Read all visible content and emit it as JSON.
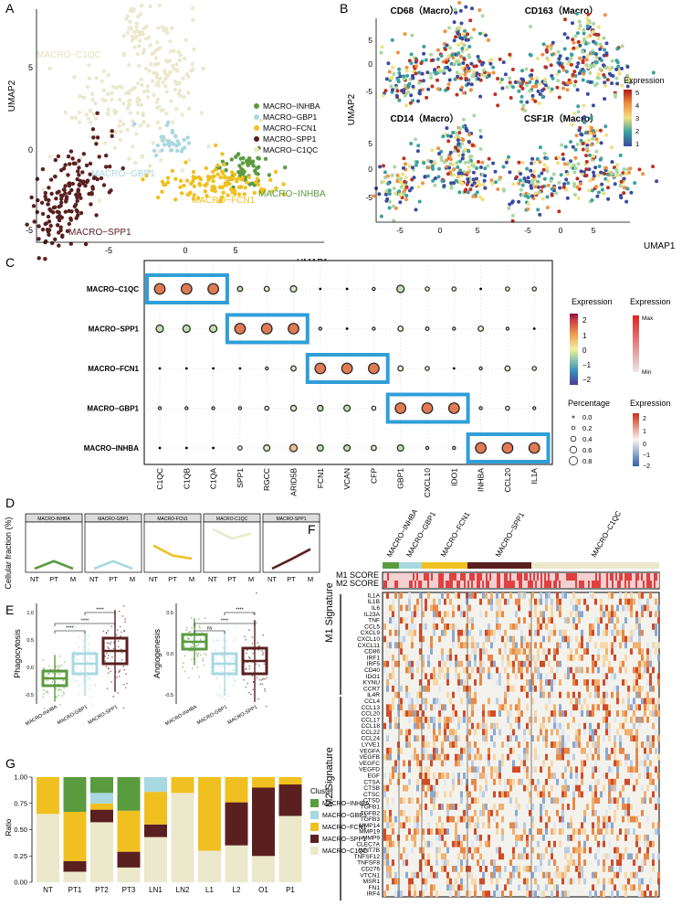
{
  "colors": {
    "inhba": "#5a9b3f",
    "gbp1": "#a8d8e0",
    "fcn1": "#f0c020",
    "spp1": "#5a2020",
    "c1qc": "#ece8cc",
    "blue_box": "#2f9fd8",
    "dot_fill": "#e07a52"
  },
  "panels": {
    "A": {
      "letter": "A",
      "xlabel": "UMAP1",
      "ylabel": "UMAP2",
      "xticks": [
        "-5",
        "0",
        "5"
      ],
      "yticks": [
        "5",
        "0",
        "-5"
      ],
      "legend": [
        "MACRO−INHBA",
        "MACRO−GBP1",
        "MACRO−FCN1",
        "MACRO−SPP1",
        "MACRO−C1QC"
      ],
      "labels": {
        "c1qc": "MACRO−C1QC",
        "gbp1": "MACRO−GBP1",
        "inhba": "MACRO−INHBA",
        "fcn1": "MACRO−FCN1",
        "spp1": "MACRO−SPP1"
      }
    },
    "B": {
      "letter": "B",
      "titles": [
        "CD68（Macro）",
        "CD163（Macro）",
        "CD14（Macro）",
        "CSF1R（Macro）"
      ],
      "xlabel": "UMAP1",
      "ylabel": "UMAP2",
      "xticks": [
        "-5",
        "0",
        "5"
      ],
      "yticks": [
        "5",
        "0",
        "-5"
      ],
      "legend_title": "Expression",
      "legend_ticks": [
        "5",
        "4",
        "3",
        "2",
        "1"
      ]
    },
    "C": {
      "letter": "C",
      "rows": [
        "MACRO−C1QC",
        "MACRO−SPP1",
        "MACRO−FCN1",
        "MACRO−GBP1",
        "MACRO−INHBA"
      ],
      "cols": [
        "C1QC",
        "C1QB",
        "C1QA",
        "SPP1",
        "RGCC",
        "ARID5B",
        "FCN1",
        "VCAN",
        "CFP",
        "GBP1",
        "CXCL10",
        "IDO1",
        "INHBA",
        "CCL20",
        "IL1A"
      ],
      "legend_expr_title": "Expression",
      "legend_expr_ticks": [
        "2",
        "1",
        "0",
        "−1",
        "−2"
      ],
      "legend_pct_title": "Percentage",
      "legend_pct_ticks": [
        "0.0",
        "0.2",
        "0.4",
        "0.6",
        "0.8"
      ],
      "legend_max_title": "Expression",
      "legend_max": "Max",
      "legend_min": "Min",
      "legend_div_title": "Expression",
      "legend_div_ticks": [
        "2",
        "1",
        "0",
        "−1",
        "−2"
      ]
    },
    "D": {
      "letter": "D",
      "ylabel": "Cellular fraction (%)",
      "titles": [
        "MACRO-INHBA",
        "MACRO-GBP1",
        "MACRO-FCN1",
        "MACRO-C1QC",
        "MACRO-SPP1"
      ],
      "xticks": [
        "NT",
        "PT",
        "M"
      ]
    },
    "E": {
      "letter": "E",
      "left_ylabel": "Phagocytosis",
      "left_yticks": [
        "1.0",
        "0.5",
        "0.0",
        "-0.5"
      ],
      "right_ylabel": "Angiogenesis",
      "right_yticks": [
        "0.5",
        "0.0",
        "-0.5"
      ],
      "xticks": [
        "MACRO-INHBA",
        "MACRO-GBP1",
        "MACRO-SPP1"
      ],
      "sig_left": [
        "****",
        "****",
        "****"
      ],
      "sig_right": [
        "ns",
        "****",
        "****"
      ]
    },
    "F": {
      "letter": "F",
      "header": [
        "MACRO−INHBA",
        "MACRO−GBP1",
        "MACRO−FCN1",
        "MACRO−SPP1",
        "MACRO−C1QC"
      ],
      "score_labels": [
        "M1 SCORE",
        "M2 SCORE"
      ],
      "m1_label": "M1 Signature",
      "m2_label": "M2 Signature",
      "m1_genes": [
        "IL1A",
        "IL1B",
        "IL6",
        "IL23A",
        "TNF",
        "CCL5",
        "CXCL9",
        "CXCL10",
        "CXCL11",
        "CD86",
        "IRF1",
        "IRF5",
        "CD40",
        "IDO1",
        "KYNU",
        "CCR7"
      ],
      "m2_genes": [
        "IL4R",
        "CCL4",
        "CCL13",
        "CCL20",
        "CCL17",
        "CCL18",
        "CCL22",
        "CCL24",
        "LYVE1",
        "VEGFA",
        "VEGFB",
        "VEGFC",
        "VEGFD",
        "EGF",
        "CTSA",
        "CTSB",
        "CTSC",
        "CTSD",
        "TGFB1",
        "TGFB2",
        "TGFB3",
        "MMP14",
        "MMP19",
        "MMP9",
        "CLEC7A",
        "WNT7B",
        "TNFSF12",
        "TNFSF8",
        "CD276",
        "VTCN1",
        "MSR1",
        "FN1",
        "IRF4"
      ]
    },
    "G": {
      "letter": "G",
      "ylabel": "Ratio",
      "yticks": [
        "0.00",
        "0.25",
        "0.50",
        "0.75",
        "1.00"
      ],
      "legend_title": "Cluster",
      "legend": [
        "MACRO−INHBA",
        "MACRO−GBP1",
        "MACRO−FCN1",
        "MACRO−SPP1",
        "MACRO−C1QC"
      ]
    }
  },
  "chart_data": [
    {
      "type": "scatter",
      "panel": "A",
      "xlabel": "UMAP1",
      "ylabel": "UMAP2",
      "xlim": [
        -10,
        10
      ],
      "ylim": [
        -5.5,
        8.5
      ],
      "clusters": [
        {
          "name": "MACRO−C1QC",
          "center": [
            -2,
            2.5
          ]
        },
        {
          "name": "MACRO−GBP1",
          "center": [
            0.8,
            0.5
          ]
        },
        {
          "name": "MACRO−INHBA",
          "center": [
            6,
            -1.2
          ]
        },
        {
          "name": "MACRO−FCN1",
          "center": [
            3,
            -2.8
          ]
        },
        {
          "name": "MACRO−SPP1",
          "center": [
            -7.5,
            -3
          ]
        }
      ]
    },
    {
      "type": "scatter",
      "panel": "C",
      "kind": "dotplot",
      "rows": [
        "MACRO−C1QC",
        "MACRO−SPP1",
        "MACRO−FCN1",
        "MACRO−GBP1",
        "MACRO−INHBA"
      ],
      "cols": [
        "C1QC",
        "C1QB",
        "C1QA",
        "SPP1",
        "RGCC",
        "ARID5B",
        "FCN1",
        "VCAN",
        "CFP",
        "GBP1",
        "CXCL10",
        "IDO1",
        "INHBA",
        "CCL20",
        "IL1A"
      ],
      "percentage": [
        [
          0.8,
          0.8,
          0.8,
          0.3,
          0.3,
          0.4,
          0.05,
          0.05,
          0.1,
          0.5,
          0.2,
          0.2,
          0.05,
          0.2,
          0.2
        ],
        [
          0.5,
          0.5,
          0.5,
          0.8,
          0.8,
          0.8,
          0.1,
          0.05,
          0.1,
          0.3,
          0.15,
          0.1,
          0.3,
          0.1,
          0.05
        ],
        [
          0.05,
          0.05,
          0.05,
          0.05,
          0.1,
          0.3,
          0.8,
          0.8,
          0.8,
          0.3,
          0.2,
          0.05,
          0.1,
          0.3,
          0.2
        ],
        [
          0.1,
          0.1,
          0.1,
          0.1,
          0.2,
          0.35,
          0.35,
          0.4,
          0.2,
          0.8,
          0.8,
          0.8,
          0.1,
          0.2,
          0.1
        ],
        [
          0.05,
          0.05,
          0.05,
          0.2,
          0.4,
          0.5,
          0.4,
          0.4,
          0.3,
          0.4,
          0.1,
          0.1,
          0.8,
          0.8,
          0.8
        ]
      ],
      "expression": [
        [
          2,
          2,
          2,
          -1,
          -0.5,
          -0.3,
          0,
          0,
          0,
          -1.2,
          0,
          0,
          0,
          0,
          0
        ],
        [
          -1.2,
          -1.2,
          -1.2,
          2,
          2,
          2,
          0,
          0,
          0,
          0,
          0,
          0,
          0,
          0,
          0
        ],
        [
          0,
          0,
          0,
          0,
          0,
          -0.3,
          2,
          2,
          2,
          0,
          0,
          0,
          0,
          0,
          0
        ],
        [
          0,
          0,
          0,
          0,
          0,
          -0.5,
          -1,
          -1,
          0,
          2,
          2,
          2,
          0,
          0,
          0
        ],
        [
          0,
          0,
          0,
          0,
          -0.5,
          0.5,
          -1.2,
          -1.2,
          -0.5,
          -1,
          0,
          0,
          2,
          2,
          2
        ]
      ]
    },
    {
      "type": "line",
      "panel": "D",
      "x": [
        "NT",
        "PT",
        "M"
      ],
      "series": [
        {
          "name": "MACRO-INHBA",
          "values": [
            0,
            12,
            0
          ]
        },
        {
          "name": "MACRO-GBP1",
          "values": [
            0,
            12,
            0
          ]
        },
        {
          "name": "MACRO-FCN1",
          "values": [
            37,
            21,
            16
          ]
        },
        {
          "name": "MACRO-C1QC",
          "values": [
            63,
            48,
            56
          ]
        },
        {
          "name": "MACRO-SPP1",
          "values": [
            0,
            15,
            31
          ]
        }
      ]
    },
    {
      "type": "bar",
      "panel": "G",
      "stacked": true,
      "categories": [
        "NT",
        "PT1",
        "PT2",
        "PT3",
        "LN1",
        "LN2",
        "L1",
        "L2",
        "O1",
        "P1"
      ],
      "ylabel": "Ratio",
      "ylim": [
        0,
        1
      ],
      "series": [
        {
          "name": "MACRO−C1QC",
          "values": [
            0.65,
            0.1,
            0.57,
            0.14,
            0.43,
            0.85,
            0.3,
            0.35,
            0.25,
            0.63
          ]
        },
        {
          "name": "MACRO−SPP1",
          "values": [
            0.0,
            0.1,
            0.12,
            0.15,
            0.12,
            0.0,
            0.0,
            0.41,
            0.65,
            0.3
          ]
        },
        {
          "name": "MACRO−FCN1",
          "values": [
            0.35,
            0.47,
            0.06,
            0.39,
            0.31,
            0.15,
            0.7,
            0.24,
            0.1,
            0.07
          ]
        },
        {
          "name": "MACRO−GBP1",
          "values": [
            0.0,
            0.0,
            0.1,
            0.0,
            0.14,
            0.0,
            0.0,
            0.0,
            0.0,
            0.0
          ]
        },
        {
          "name": "MACRO−INHBA",
          "values": [
            0.0,
            0.33,
            0.15,
            0.32,
            0.0,
            0.0,
            0.0,
            0.0,
            0.0,
            0.0
          ]
        }
      ]
    }
  ]
}
